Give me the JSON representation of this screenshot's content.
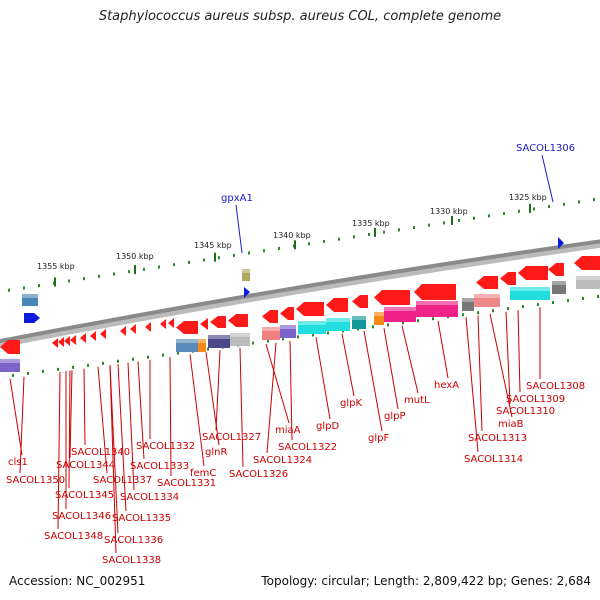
{
  "title": "Staphylococcus aureus subsp. aureus COL, complete genome",
  "footer": {
    "accession": "Accession: NC_002951",
    "summary": "Topology: circular; Length: 2,809,422 bp; Genes: 2,684"
  },
  "colors": {
    "backbone": "#8a8a8a",
    "forward_cds": "#ff1a1a",
    "gene_label": "#cc0000",
    "feature_label": "#1a1acc",
    "ticks": "#2a8a2a"
  },
  "scale": {
    "tick_labels": [
      "1355 kbp",
      "1350 kbp",
      "1345 kbp",
      "1340 kbp",
      "1335 kbp",
      "1330 kbp",
      "1325 kbp"
    ]
  },
  "features": [
    "gpxA1",
    "SACOL1306"
  ],
  "genes": [
    "cls1",
    "SACOL1350",
    "SACOL1348",
    "SACOL1346",
    "SACOL1345",
    "SACOL1344",
    "SACOL1340",
    "SACOL1338",
    "SACOL1337",
    "SACOL1336",
    "SACOL1335",
    "SACOL1334",
    "SACOL1333",
    "SACOL1332",
    "SACOL1331",
    "femC",
    "glnR",
    "SACOL1327",
    "SACOL1326",
    "miaA",
    "SACOL1324",
    "SACOL1322",
    "glpD",
    "glpK",
    "glpF",
    "glpP",
    "mutL",
    "hexA",
    "SACOL1314",
    "SACOL1313",
    "miaB",
    "SACOL1310",
    "SACOL1309",
    "SACOL1308"
  ]
}
